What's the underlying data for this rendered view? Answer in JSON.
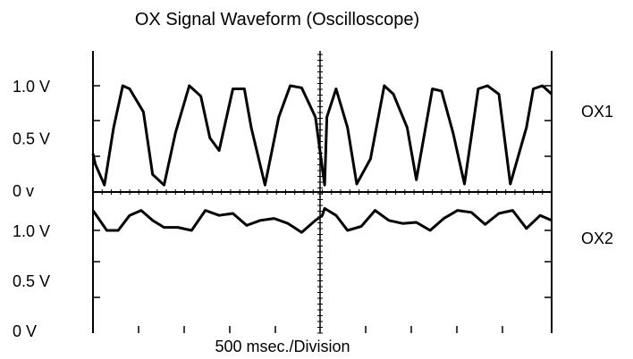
{
  "chart_data": [
    {
      "type": "line",
      "title": "OX Signal Waveform (Oscilloscope)",
      "xlabel": "500 msec./Division",
      "right_label": "OX1",
      "y_ticks": [
        {
          "value": 1.0,
          "label": "1.0  V"
        },
        {
          "value": 0.5,
          "label": "0.5 V"
        },
        {
          "value": 0.0,
          "label": "0 v"
        }
      ],
      "ylim": [
        0,
        1.3
      ],
      "xlim": [
        0,
        10
      ],
      "x": [
        0,
        0.05,
        0.25,
        0.45,
        0.65,
        0.8,
        1.1,
        1.3,
        1.55,
        1.8,
        2.1,
        2.35,
        2.55,
        2.75,
        3.05,
        3.3,
        3.45,
        3.75,
        4.05,
        4.3,
        4.55,
        4.85,
        5.05,
        5.1,
        5.3,
        5.55,
        5.75,
        6.05,
        6.35,
        6.55,
        6.85,
        7.05,
        7.4,
        7.6,
        7.85,
        8.1,
        8.4,
        8.6,
        8.85,
        9.1,
        9.45,
        9.6,
        9.8,
        10
      ],
      "y": [
        0.35,
        0.25,
        0.05,
        0.6,
        1.0,
        0.97,
        0.75,
        0.15,
        0.05,
        0.55,
        1.0,
        0.9,
        0.5,
        0.38,
        0.97,
        0.97,
        0.6,
        0.05,
        0.7,
        1.0,
        0.98,
        0.7,
        0.05,
        0.7,
        0.97,
        0.6,
        0.06,
        0.3,
        1.0,
        0.92,
        0.6,
        0.1,
        0.97,
        0.95,
        0.55,
        0.06,
        0.97,
        1.0,
        0.92,
        0.06,
        0.6,
        0.97,
        1.0,
        0.92
      ]
    },
    {
      "type": "line",
      "title": "",
      "xlabel": "500 msec./Division",
      "right_label": "OX2",
      "y_ticks": [
        {
          "value": 1.0,
          "label": "1.0  V"
        },
        {
          "value": 0.5,
          "label": "0.5 V"
        },
        {
          "value": 0.0,
          "label": "0 V"
        }
      ],
      "ylim": [
        0,
        1.3
      ],
      "xlim": [
        0,
        10
      ],
      "x": [
        0,
        0.3,
        0.55,
        0.8,
        1.05,
        1.3,
        1.55,
        1.85,
        2.15,
        2.45,
        2.75,
        3.05,
        3.35,
        3.65,
        3.95,
        4.25,
        4.55,
        4.85,
        5.0,
        5.05,
        5.3,
        5.55,
        5.85,
        6.15,
        6.45,
        6.75,
        7.05,
        7.35,
        7.65,
        7.95,
        8.25,
        8.55,
        8.85,
        9.15,
        9.45,
        9.75,
        10
      ],
      "y": [
        1.2,
        1.0,
        1.0,
        1.15,
        1.2,
        1.1,
        1.03,
        1.03,
        1.0,
        1.2,
        1.15,
        1.17,
        1.05,
        1.1,
        1.12,
        1.07,
        0.98,
        1.1,
        1.15,
        1.22,
        1.15,
        1.0,
        1.04,
        1.2,
        1.1,
        1.07,
        1.08,
        1.0,
        1.12,
        1.2,
        1.18,
        1.06,
        1.17,
        1.2,
        1.02,
        1.15,
        1.1
      ]
    }
  ]
}
